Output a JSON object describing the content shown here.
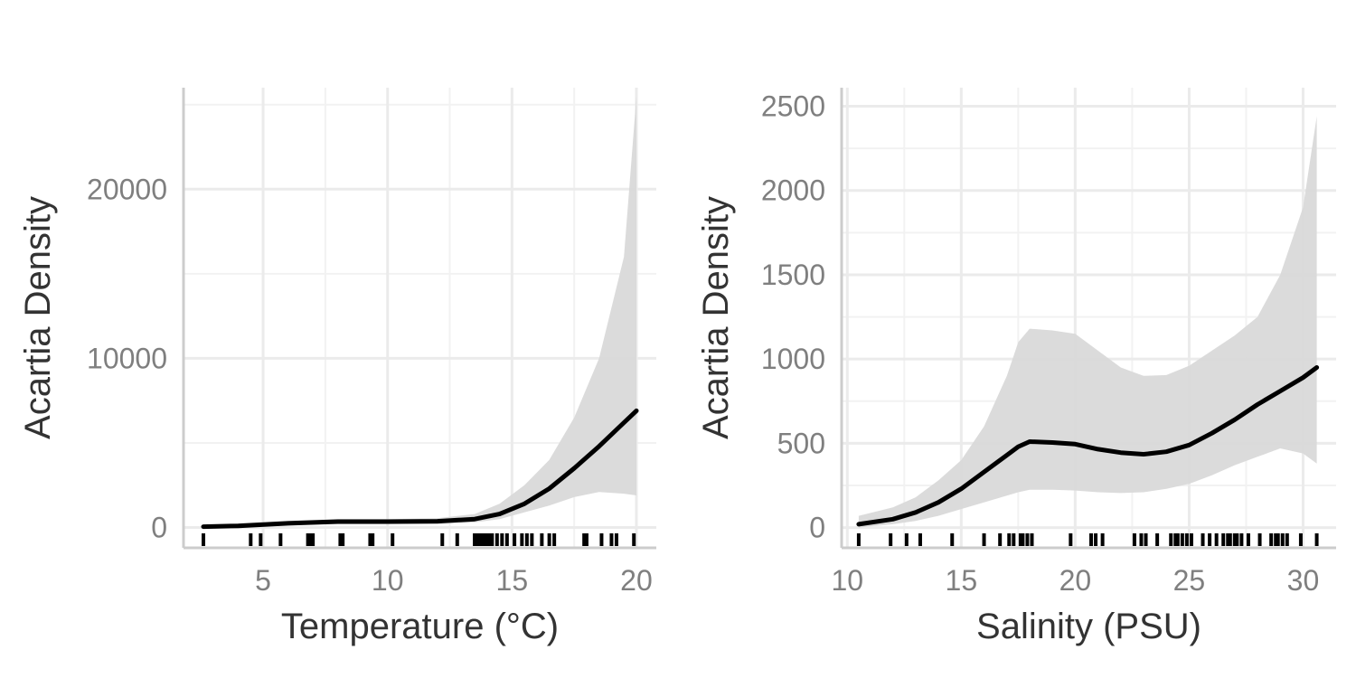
{
  "chart_data": [
    {
      "type": "line",
      "xlabel": "Temperature (°C)",
      "ylabel": "Acartia Density",
      "xlim": [
        1.8,
        20.8
      ],
      "ylim": [
        -1200,
        26000
      ],
      "xticks": [
        5,
        10,
        15,
        20
      ],
      "xtick_labels": [
        "5",
        "10",
        "15",
        "20"
      ],
      "xminor": [
        7.5,
        12.5,
        17.5
      ],
      "yticks": [
        0,
        10000,
        20000
      ],
      "ytick_labels": [
        "0",
        "10000",
        "20000"
      ],
      "yminor": [
        5000,
        15000,
        25000
      ],
      "grid": true,
      "band_color": "#d9d9d9",
      "line_color": "#000000",
      "series": [
        {
          "x": [
            2.6,
            4,
            6,
            8,
            10,
            12,
            13.5,
            14.5,
            15.5,
            16.5,
            17.5,
            18.5,
            19.5,
            20
          ],
          "y": [
            50,
            100,
            250,
            350,
            350,
            370,
            500,
            800,
            1400,
            2300,
            3500,
            4800,
            6200,
            6900
          ],
          "lower": [
            0,
            50,
            150,
            200,
            200,
            200,
            300,
            500,
            900,
            1300,
            1800,
            2100,
            2000,
            1900
          ],
          "upper": [
            100,
            250,
            400,
            500,
            500,
            550,
            800,
            1400,
            2500,
            4000,
            6500,
            10000,
            16000,
            25500
          ]
        }
      ],
      "rug": [
        2.6,
        4.5,
        4.9,
        5.7,
        6.8,
        6.9,
        7.0,
        8.1,
        8.2,
        9.3,
        9.4,
        10.2,
        12.2,
        12.8,
        13.5,
        13.6,
        13.7,
        13.8,
        13.9,
        14.0,
        14.1,
        14.2,
        14.4,
        14.6,
        14.8,
        15.1,
        15.4,
        15.6,
        15.8,
        16.2,
        16.5,
        16.7,
        17.9,
        18.0,
        18.6,
        19.0,
        19.2,
        19.9
      ]
    },
    {
      "type": "line",
      "xlabel": "Salinity (PSU)",
      "ylabel": "Acartia Density",
      "xlim": [
        9.75,
        31.45
      ],
      "ylim": [
        -120,
        2610
      ],
      "xticks": [
        10,
        15,
        20,
        25,
        30
      ],
      "xtick_labels": [
        "10",
        "15",
        "20",
        "25",
        "30"
      ],
      "xminor": [
        12.5,
        17.5,
        22.5,
        27.5
      ],
      "yticks": [
        0,
        500,
        1000,
        1500,
        2000,
        2500
      ],
      "ytick_labels": [
        "0",
        "500",
        "1000",
        "1500",
        "2000",
        "2500"
      ],
      "yminor": [
        250,
        750,
        1250,
        1750,
        2250
      ],
      "grid": true,
      "band_color": "#d9d9d9",
      "line_color": "#000000",
      "series": [
        {
          "x": [
            10.5,
            12,
            13,
            14,
            15,
            16,
            17,
            17.5,
            18,
            19,
            20,
            21,
            22,
            23,
            24,
            25,
            26,
            27,
            28,
            29,
            30,
            30.6
          ],
          "y": [
            20,
            50,
            90,
            150,
            230,
            330,
            430,
            480,
            510,
            505,
            495,
            465,
            445,
            435,
            450,
            490,
            560,
            640,
            730,
            810,
            890,
            950
          ],
          "lower": [
            0,
            20,
            40,
            70,
            110,
            150,
            190,
            210,
            225,
            225,
            220,
            210,
            205,
            210,
            230,
            260,
            310,
            370,
            420,
            470,
            440,
            380
          ],
          "upper": [
            70,
            120,
            180,
            280,
            400,
            600,
            900,
            1100,
            1180,
            1170,
            1150,
            1050,
            950,
            900,
            905,
            960,
            1050,
            1140,
            1250,
            1500,
            1900,
            2440
          ]
        }
      ],
      "rug": [
        10.5,
        11.9,
        12.6,
        13.2,
        14.6,
        16.0,
        16.7,
        17.1,
        17.3,
        17.6,
        17.7,
        17.9,
        18.1,
        19.8,
        20.7,
        20.9,
        21.2,
        22.6,
        22.9,
        23.1,
        23.6,
        24.2,
        24.4,
        24.5,
        24.7,
        24.9,
        25.1,
        25.6,
        25.9,
        26.2,
        26.5,
        26.7,
        26.8,
        27.0,
        27.1,
        27.3,
        27.6,
        28.1,
        28.6,
        28.8,
        28.9,
        29.1,
        29.3,
        29.9,
        30.6
      ]
    }
  ]
}
